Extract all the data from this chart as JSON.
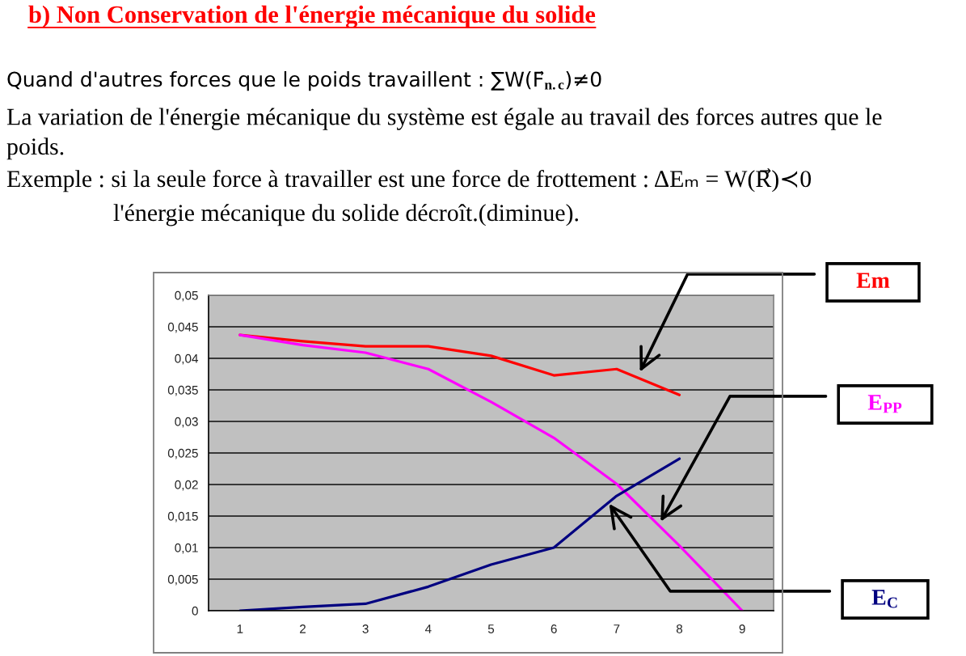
{
  "chart_data": {
    "type": "line",
    "title": "b) Non Conservation de l'énergie mécanique du solide",
    "annotations": [
      "Quand d'autres forces que le poids travaillent : ∑W(F⃗$_{n.c}$)≠0",
      "La variation de l'énergie mécanique du système est égale au travail des forces autres que le poids.",
      "Exemple : si la seule force à travailler est une force de frottement : ΔEₘ = W(R⃗)≺0",
      "l'énergie mécanique du solide décroît.(diminue)."
    ],
    "categories": [
      "1",
      "2",
      "3",
      "4",
      "5",
      "6",
      "7",
      "8",
      "9"
    ],
    "series": [
      {
        "name": "Em",
        "color": "#ff0000",
        "values": [
          0.0437,
          0.0427,
          0.0419,
          0.0419,
          0.0404,
          0.0373,
          0.0383,
          0.0342,
          null
        ]
      },
      {
        "name": "E$_{PP}$",
        "color": "#ff00ff",
        "values": [
          0.0437,
          0.0421,
          0.0409,
          0.0383,
          0.0331,
          0.0274,
          0.0201,
          0.0103,
          0
        ]
      },
      {
        "name": "E$_{C}$",
        "color": "#000080",
        "values": [
          0,
          0.0006,
          0.0011,
          0.0038,
          0.0073,
          0.01,
          0.0182,
          0.0241,
          null
        ]
      }
    ],
    "ylim": [
      0,
      0.05
    ],
    "yticks": [
      0,
      {
        "value": 0.005,
        "label": "0,005"
      },
      {
        "value": 0.01,
        "label": "0,01"
      },
      {
        "value": 0.015,
        "label": "0,015"
      },
      {
        "value": 0.02,
        "label": "0,02"
      },
      {
        "value": 0.025,
        "label": "0,025"
      },
      {
        "value": 0.03,
        "label": "0,03"
      },
      {
        "value": 0.035,
        "label": "0,035"
      },
      {
        "value": 0.04,
        "label": "0,04"
      },
      {
        "value": 0.045,
        "label": "0,045"
      },
      {
        "value": 0.05,
        "label": "0,05"
      }
    ],
    "grid": "y"
  }
}
